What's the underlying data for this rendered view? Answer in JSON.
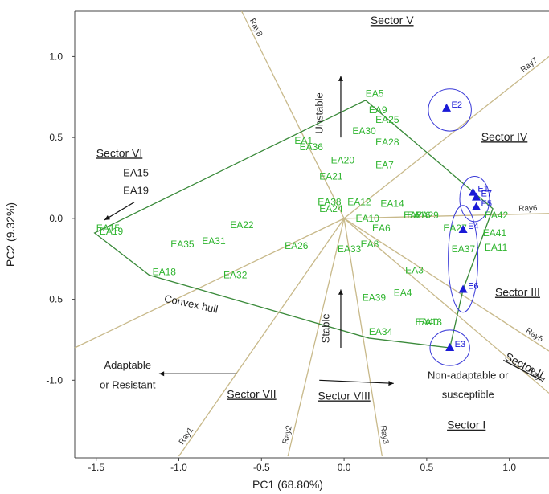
{
  "chart_data": {
    "type": "scatter",
    "xlabel": "PC1 (68.80%)",
    "ylabel": "PC2 (9.32%)",
    "xlim": [
      -1.63,
      1.24
    ],
    "ylim": [
      -1.48,
      1.28
    ],
    "xticks": [
      "-1.5",
      "-1.0",
      "-0.5",
      "0.0",
      "0.5",
      "1.0"
    ],
    "xtick_values": [
      -1.5,
      -1.0,
      -0.5,
      0.0,
      0.5,
      1.0
    ],
    "yticks": [
      "1.0",
      "0.5",
      "0.0",
      "-0.5",
      "-1.0"
    ],
    "ytick_values": [
      1.0,
      0.5,
      0.0,
      -0.5,
      -1.0
    ],
    "colors": {
      "genotype": "#2fb52f",
      "environment": "#1a1ad6",
      "rays": "#c8b98a",
      "hull": "#3a8a3a",
      "circle": "#3b3bd8"
    },
    "genotypes": [
      {
        "label": "EA5",
        "x": 0.13,
        "y": 0.77
      },
      {
        "label": "EA9",
        "x": 0.15,
        "y": 0.67
      },
      {
        "label": "EA25",
        "x": 0.19,
        "y": 0.61
      },
      {
        "label": "EA30",
        "x": 0.05,
        "y": 0.54
      },
      {
        "label": "EA28",
        "x": 0.19,
        "y": 0.47
      },
      {
        "label": "EA1",
        "x": -0.3,
        "y": 0.48
      },
      {
        "label": "EA36",
        "x": -0.27,
        "y": 0.44
      },
      {
        "label": "EA20",
        "x": -0.08,
        "y": 0.36
      },
      {
        "label": "EA7",
        "x": 0.19,
        "y": 0.33
      },
      {
        "label": "EA21",
        "x": -0.15,
        "y": 0.26
      },
      {
        "label": "EA38",
        "x": -0.16,
        "y": 0.1
      },
      {
        "label": "EA24",
        "x": -0.15,
        "y": 0.06
      },
      {
        "label": "EA12",
        "x": 0.02,
        "y": 0.1
      },
      {
        "label": "EA14",
        "x": 0.22,
        "y": 0.09
      },
      {
        "label": "EA10",
        "x": 0.07,
        "y": 0.0
      },
      {
        "label": "EA6",
        "x": 0.17,
        "y": -0.06
      },
      {
        "label": "EA15",
        "x": -1.5,
        "y": -0.06
      },
      {
        "label": "EA19",
        "x": -1.48,
        "y": -0.08
      },
      {
        "label": "EA22",
        "x": -0.69,
        "y": -0.04
      },
      {
        "label": "EA35",
        "x": -1.05,
        "y": -0.16
      },
      {
        "label": "EA31",
        "x": -0.86,
        "y": -0.14
      },
      {
        "label": "EA26",
        "x": -0.36,
        "y": -0.17
      },
      {
        "label": "EA8",
        "x": 0.1,
        "y": -0.16
      },
      {
        "label": "EA33",
        "x": -0.04,
        "y": -0.19
      },
      {
        "label": "EA18",
        "x": -1.16,
        "y": -0.33
      },
      {
        "label": "EA32",
        "x": -0.73,
        "y": -0.35
      },
      {
        "label": "EA3",
        "x": 0.37,
        "y": -0.32
      },
      {
        "label": "EA4",
        "x": 0.3,
        "y": -0.46
      },
      {
        "label": "EA39",
        "x": 0.11,
        "y": -0.49
      },
      {
        "label": "EA34",
        "x": 0.15,
        "y": -0.7
      },
      {
        "label": "EA13",
        "x": 0.45,
        "y": -0.64
      },
      {
        "label": "EA40",
        "x": 0.43,
        "y": -0.64
      },
      {
        "label": "EA2",
        "x": 0.36,
        "y": 0.02
      },
      {
        "label": "EA29",
        "x": 0.43,
        "y": 0.02
      },
      {
        "label": "EA16",
        "x": 0.38,
        "y": 0.02
      },
      {
        "label": "EA27",
        "x": 0.6,
        "y": -0.06
      },
      {
        "label": "EA37",
        "x": 0.65,
        "y": -0.19
      },
      {
        "label": "EA11",
        "x": 0.85,
        "y": -0.18
      },
      {
        "label": "EA41",
        "x": 0.84,
        "y": -0.09
      },
      {
        "label": "EA42",
        "x": 0.85,
        "y": 0.02
      }
    ],
    "environments": [
      {
        "label": "E2",
        "x": 0.62,
        "y": 0.68
      },
      {
        "label": "E1",
        "x": 0.78,
        "y": 0.16
      },
      {
        "label": "E7",
        "x": 0.8,
        "y": 0.13
      },
      {
        "label": "E5",
        "x": 0.8,
        "y": 0.07
      },
      {
        "label": "E4",
        "x": 0.72,
        "y": -0.07
      },
      {
        "label": "E6",
        "x": 0.72,
        "y": -0.44
      },
      {
        "label": "E3",
        "x": 0.64,
        "y": -0.8
      }
    ],
    "hull": [
      [
        0.13,
        0.73
      ],
      [
        0.9,
        0.06
      ],
      [
        0.72,
        -0.44
      ],
      [
        0.64,
        -0.8
      ],
      [
        0.15,
        -0.74
      ],
      [
        -1.18,
        -0.35
      ],
      [
        -1.51,
        -0.09
      ],
      [
        0.13,
        0.73
      ]
    ],
    "rays": [
      {
        "label": "Ray1",
        "end": [
          -1.0,
          -1.47
        ]
      },
      {
        "label": "Ray2",
        "end": [
          -0.34,
          -1.47
        ]
      },
      {
        "label": "Ray3",
        "end": [
          0.23,
          -1.47
        ]
      },
      {
        "label": "Ray4",
        "end": [
          1.24,
          -1.08
        ]
      },
      {
        "label": "Ray5",
        "end": [
          1.24,
          -0.82
        ]
      },
      {
        "label": "Ray6",
        "end": [
          1.24,
          0.03
        ]
      },
      {
        "label": "Ray7",
        "end": [
          1.24,
          1.0
        ]
      },
      {
        "label": "Ray8",
        "end": [
          -0.62,
          1.28
        ]
      },
      {
        "label": "",
        "end": [
          -1.63,
          -0.8
        ]
      }
    ],
    "circles": [
      {
        "cx": 0.64,
        "cy": 0.67,
        "rx": 0.13,
        "ry": 0.13
      },
      {
        "cx": 0.79,
        "cy": 0.12,
        "rx": 0.09,
        "ry": 0.14
      },
      {
        "cx": 0.72,
        "cy": -0.25,
        "rx": 0.09,
        "ry": 0.33
      },
      {
        "cx": 0.64,
        "cy": -0.8,
        "rx": 0.12,
        "ry": 0.11
      }
    ],
    "sectors": [
      {
        "label": "Sector V",
        "x": 0.29,
        "y": 1.2
      },
      {
        "label": "Sector IV",
        "x": 0.97,
        "y": 0.48
      },
      {
        "label": "Sector VI",
        "x": -1.36,
        "y": 0.38
      },
      {
        "label": "Sector III",
        "x": 1.05,
        "y": -0.48
      },
      {
        "label": "Sector II",
        "x": 1.08,
        "y": -0.93
      },
      {
        "label": "Sector VII",
        "x": -0.56,
        "y": -1.11
      },
      {
        "label": "Sector VIII",
        "x": 0.0,
        "y": -1.12
      },
      {
        "label": "Sector I",
        "x": 0.74,
        "y": -1.3
      }
    ],
    "annotations": [
      {
        "text": "Unstable",
        "x": -0.13,
        "y": 0.65
      },
      {
        "text": "Stable",
        "x": -0.09,
        "y": -0.68
      },
      {
        "text": "Convex hull",
        "x": -0.93,
        "y": -0.55
      },
      {
        "text": "Adaptable",
        "x": -1.31,
        "y": -0.93
      },
      {
        "text": "or Resistant",
        "x": -1.31,
        "y": -1.05
      },
      {
        "text": "Non-adaptable or",
        "x": 0.75,
        "y": -0.99
      },
      {
        "text": "susceptible",
        "x": 0.75,
        "y": -1.11
      },
      {
        "text": "EA15",
        "x": -1.26,
        "y": 0.26
      },
      {
        "text": "EA19",
        "x": -1.26,
        "y": 0.15
      }
    ]
  }
}
